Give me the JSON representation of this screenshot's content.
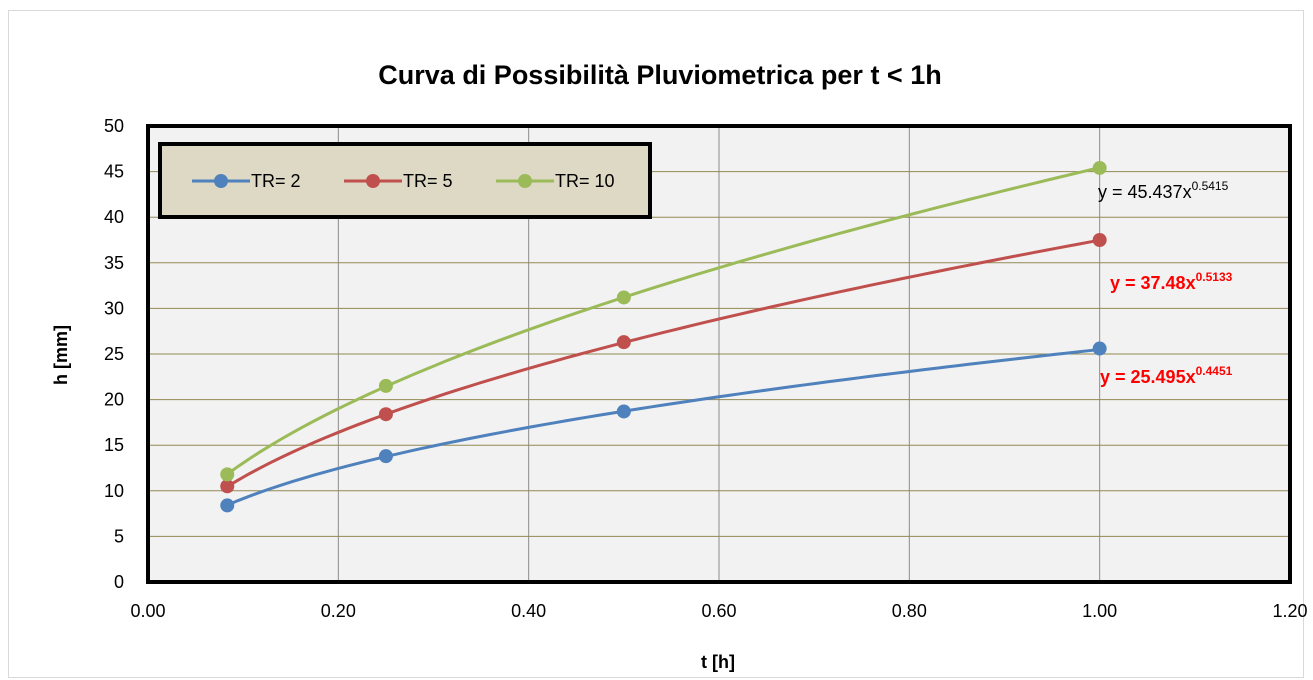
{
  "chart_data": {
    "type": "line",
    "title": "Curva di Possibilità Pluviometrica per t < 1h",
    "xlabel": "t [h]",
    "ylabel": "h [mm]",
    "xlim": [
      0,
      1.2
    ],
    "ylim": [
      0,
      50
    ],
    "x_ticks": [
      "0.00",
      "0.20",
      "0.40",
      "0.60",
      "0.80",
      "1.00",
      "1.20"
    ],
    "y_ticks": [
      "0",
      "5",
      "10",
      "15",
      "20",
      "25",
      "30",
      "35",
      "40",
      "45",
      "50"
    ],
    "grid": true,
    "legend_position": "top-left",
    "plot_background": "#f2f2f2",
    "legend_background": "#ddd9c4",
    "x": [
      0.0833,
      0.25,
      0.5,
      1.0
    ],
    "series": [
      {
        "name": "TR= 2",
        "color": "#4f81bd",
        "values": [
          8.4,
          13.8,
          18.7,
          25.6
        ],
        "fit": {
          "a": 25.495,
          "n": 0.4451
        },
        "equation": {
          "prefix": "y = 25.495x",
          "exponent": "0.4451",
          "color": "#ff0000",
          "bold": true
        }
      },
      {
        "name": "TR= 5",
        "color": "#c0504d",
        "values": [
          10.5,
          18.4,
          26.3,
          37.5
        ],
        "fit": {
          "a": 37.48,
          "n": 0.5133
        },
        "equation": {
          "prefix": "y = 37.48x",
          "exponent": "0.5133",
          "color": "#ff0000",
          "bold": true
        }
      },
      {
        "name": "TR= 10",
        "color": "#9bbb59",
        "values": [
          11.8,
          21.5,
          31.2,
          45.4
        ],
        "fit": {
          "a": 45.437,
          "n": 0.5415
        },
        "equation": {
          "prefix": "y = 45.437x",
          "exponent": "0.5415",
          "color": "#000000",
          "bold": false
        }
      }
    ]
  }
}
